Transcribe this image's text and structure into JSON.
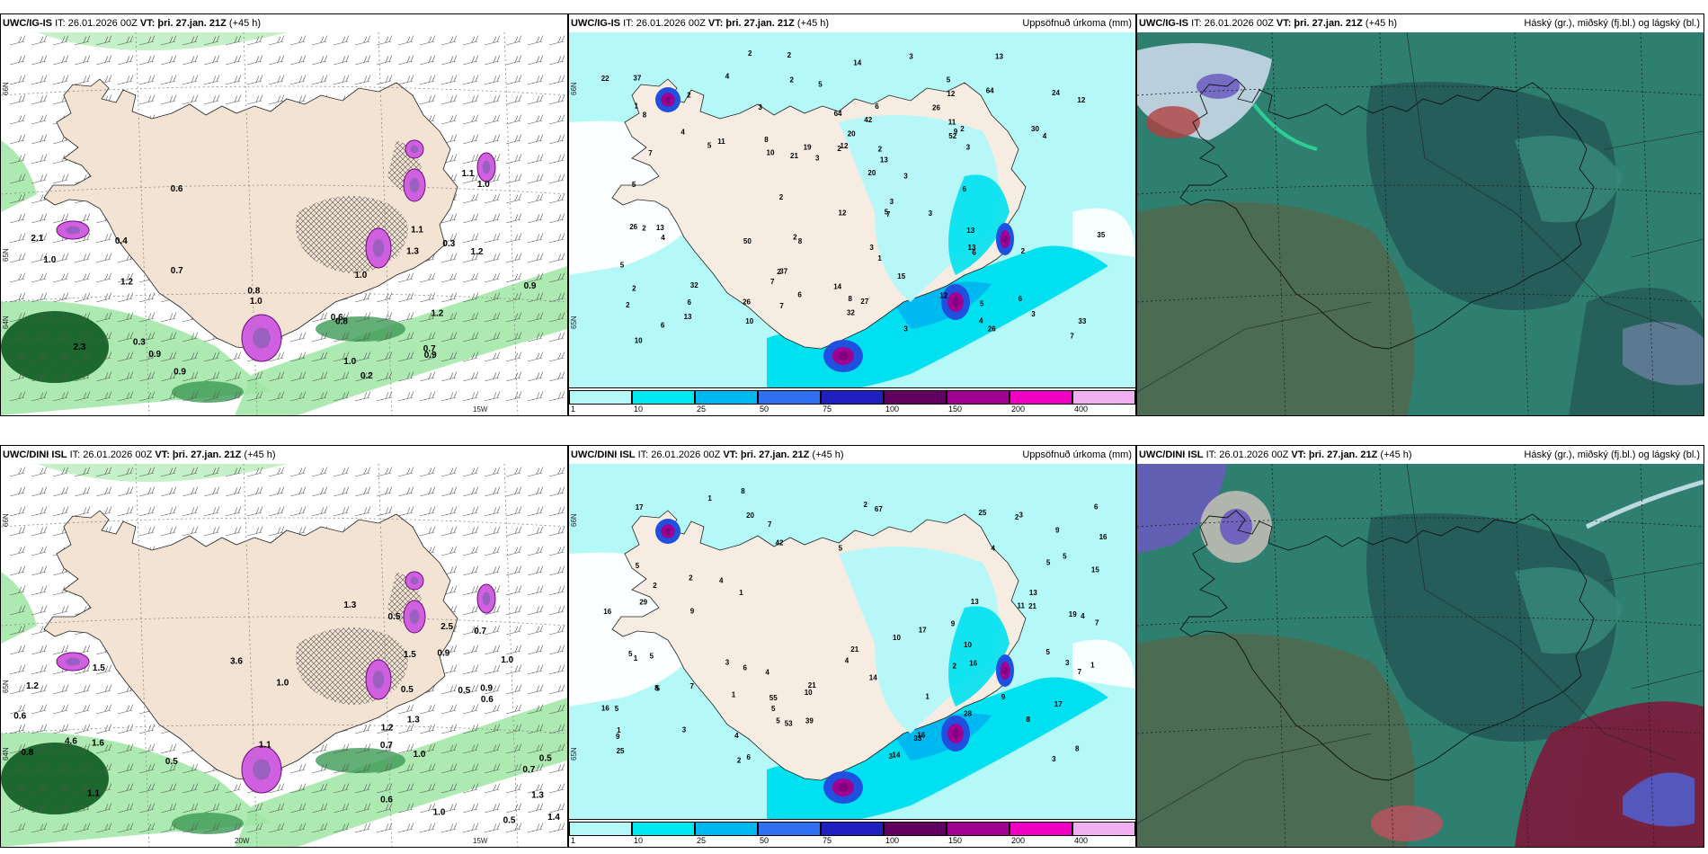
{
  "panels": [
    {
      "id": "igis-wind",
      "title_model": "UWC/IG-IS",
      "title_it": "IT: 26.01.2026 00Z",
      "title_vt_label": "VT:",
      "title_vt": "þri. 27.jan. 21Z",
      "title_lead": "(+45 h)",
      "title_right": "",
      "lat_labels": [
        "66N",
        "64N",
        "65N"
      ],
      "lon_labels": [
        "15W"
      ],
      "values": [
        "0.2",
        "0.6",
        "0.3",
        "0.4",
        "0.3",
        "1.0",
        "0.9",
        "0.7",
        "1.0",
        "0.9",
        "2.3",
        "2.1",
        "0.8",
        "0.6",
        "1.3",
        "1.1",
        "1.0",
        "1.0",
        "1.2",
        "1.2",
        "0.7",
        "0.8",
        "0.9",
        "0.9",
        "1.0",
        "1.1",
        "1.2"
      ]
    },
    {
      "id": "igis-precip",
      "title_model": "UWC/IG-IS",
      "title_it": "IT: 26.01.2026 00Z",
      "title_vt_label": "VT:",
      "title_vt": "þri. 27.jan. 21Z",
      "title_lead": "(+45 h)",
      "title_right": "Uppsöfnuð úrkoma (mm)",
      "lat_labels": [
        "66N",
        "65N"
      ],
      "values": [
        "6",
        "2",
        "3",
        "3",
        "5",
        "3",
        "6",
        "5",
        "5",
        "7",
        "7",
        "10",
        "6",
        "14",
        "12",
        "8",
        "13",
        "4",
        "12",
        "12",
        "22",
        "13",
        "32",
        "3",
        "6",
        "12",
        "19",
        "42",
        "4",
        "15",
        "3",
        "8",
        "6",
        "10",
        "5",
        "3",
        "8",
        "3",
        "7",
        "14",
        "5",
        "37",
        "3",
        "7",
        "6",
        "21",
        "20",
        "27",
        "35",
        "33",
        "8",
        "12",
        "37",
        "4",
        "32",
        "2",
        "30",
        "3",
        "3",
        "13",
        "13",
        "11",
        "9",
        "24",
        "26",
        "13",
        "13",
        "6",
        "10",
        "2",
        "11",
        "7",
        "20",
        "50",
        "26",
        "26",
        "26",
        "64",
        "64",
        "52",
        "2",
        "2",
        "2",
        "2",
        "4",
        "5",
        "4",
        "2",
        "1",
        "2",
        "1",
        "2",
        "2",
        "2",
        "2",
        "2",
        "5"
      ],
      "legend_ticks": [
        "1",
        "10",
        "25",
        "50",
        "75",
        "100",
        "150",
        "200",
        "400"
      ]
    },
    {
      "id": "igis-cloud",
      "title_model": "UWC/IG-IS",
      "title_it": "IT: 26.01.2026 00Z",
      "title_vt_label": "VT:",
      "title_vt": "þri. 27.jan. 21Z",
      "title_lead": "(+45 h)",
      "title_right": "Háský (gr.), miðský (fj.bl.) og lágský (bl.)"
    },
    {
      "id": "dini-wind",
      "title_model": "UWC/DINI ISL",
      "title_it": "IT: 26.01.2026 00Z",
      "title_vt_label": "VT:",
      "title_vt": "þri. 27.jan. 21Z",
      "title_lead": "(+45 h)",
      "title_right": "",
      "lat_labels": [
        "66N",
        "64N",
        "65N"
      ],
      "lon_labels": [
        "20W",
        "15W"
      ],
      "values": [
        "0.7",
        "0.5",
        "0.5",
        "0.7",
        "0.6",
        "0.9",
        "0.9",
        "1.0",
        "1.3",
        "1.0",
        "1.3",
        "1.2",
        "0.8",
        "1.0",
        "0.5",
        "0.5",
        "0.7",
        "4.6",
        "2.5",
        "3.6",
        "1.1",
        "0.6",
        "0.5",
        "0.5",
        "0.6",
        "1.1",
        "1.5",
        "1.5",
        "1.4",
        "1.6",
        "1.0",
        "1.3",
        "1.2"
      ]
    },
    {
      "id": "dini-precip",
      "title_model": "UWC/DINI ISL",
      "title_it": "IT: 26.01.2026 00Z",
      "title_vt_label": "VT:",
      "title_vt": "þri. 27.jan. 21Z",
      "title_lead": "(+45 h)",
      "title_right": "Uppsöfnuð úrkoma (mm)",
      "lat_labels": [
        "66N",
        "65N"
      ],
      "values": [
        "4",
        "5",
        "5",
        "5",
        "3",
        "4",
        "3",
        "6",
        "3",
        "1",
        "2",
        "5",
        "17",
        "15",
        "5",
        "4",
        "1",
        "1",
        "8",
        "13",
        "9",
        "3",
        "8",
        "16",
        "16",
        "10",
        "5",
        "5",
        "5",
        "9",
        "7",
        "11",
        "21",
        "21",
        "2",
        "33",
        "1",
        "1",
        "10",
        "6",
        "16",
        "9",
        "25",
        "67",
        "1",
        "20",
        "5",
        "9",
        "19",
        "42",
        "4",
        "16",
        "17",
        "8",
        "21",
        "55",
        "3",
        "9",
        "7",
        "6",
        "7",
        "2",
        "7",
        "4",
        "3",
        "25",
        "14",
        "14",
        "10",
        "4",
        "53",
        "13",
        "28",
        "29",
        "39",
        "8",
        "16",
        "17",
        "2",
        "5",
        "5",
        "1",
        "2",
        "2"
      ],
      "legend_ticks": [
        "1",
        "10",
        "25",
        "50",
        "75",
        "100",
        "150",
        "200",
        "400"
      ]
    },
    {
      "id": "dini-cloud",
      "title_model": "UWC/DINI ISL",
      "title_it": "IT: 26.01.2026 00Z",
      "title_vt_label": "VT:",
      "title_vt": "þri. 27.jan. 21Z",
      "title_lead": "(+45 h)",
      "title_right": "Háský (gr.), miðský (fj.bl.) og lágský (bl.)"
    }
  ],
  "legend_colors": [
    "#b4f8f8",
    "#00e8f0",
    "#00b8f0",
    "#3070f0",
    "#2020c0",
    "#600060",
    "#a00090",
    "#f000c0",
    "#f0b0f0"
  ],
  "colors": {
    "land": "#f3e3d2",
    "precip_light": "#b4f8f8",
    "precip_mid": "#00e0f0",
    "precip_heavy": "#2050e0",
    "precip_extreme": "#800080",
    "wind_green": "#9ee6a3",
    "wind_dark": "#0c5a20",
    "wind_magenta": "#d060e0",
    "cloud_teal": "#2e7f6f",
    "cloud_dark": "#235a58",
    "cloud_olive": "#4f6a50",
    "cloud_purple": "#6a5ac0",
    "cloud_maroon": "#7a1f3e"
  }
}
